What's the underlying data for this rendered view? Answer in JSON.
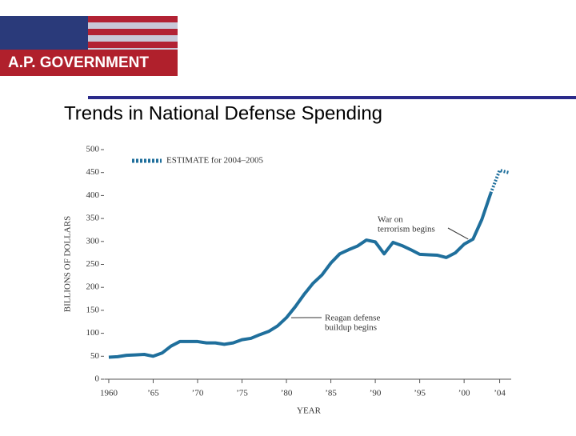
{
  "header": {
    "title": "A.P. GOVERNMENT"
  },
  "slide_title": "Trends in National Defense Spending",
  "chart_data": {
    "type": "line",
    "y_label": "BILLIONS OF DOLLARS",
    "x_label": "YEAR",
    "x": [
      1960,
      1961,
      1962,
      1963,
      1964,
      1965,
      1966,
      1967,
      1968,
      1969,
      1970,
      1971,
      1972,
      1973,
      1974,
      1975,
      1976,
      1977,
      1978,
      1979,
      1980,
      1981,
      1982,
      1983,
      1984,
      1985,
      1986,
      1987,
      1988,
      1989,
      1990,
      1991,
      1992,
      1993,
      1994,
      1995,
      1996,
      1997,
      1998,
      1999,
      2000,
      2001,
      2002,
      2003,
      2004,
      2005
    ],
    "series": [
      {
        "color": "#1f6f9c",
        "style": "solid",
        "values": [
          48,
          49,
          52,
          53,
          54,
          50,
          57,
          72,
          82,
          82,
          82,
          79,
          79,
          76,
          79,
          86,
          89,
          97,
          104,
          116,
          134,
          158,
          185,
          209,
          227,
          253,
          273,
          282,
          290,
          303,
          299,
          273,
          298,
          291,
          282,
          272,
          271,
          270,
          265,
          275,
          294,
          305,
          348,
          405,
          null,
          null
        ]
      },
      {
        "name": "ESTIMATE for 2004–2005",
        "color": "#1f6f9c",
        "style": "dotted",
        "values": [
          null,
          null,
          null,
          null,
          null,
          null,
          null,
          null,
          null,
          null,
          null,
          null,
          null,
          null,
          null,
          null,
          null,
          null,
          null,
          null,
          null,
          null,
          null,
          null,
          null,
          null,
          null,
          null,
          null,
          null,
          null,
          null,
          null,
          null,
          null,
          null,
          null,
          null,
          null,
          null,
          null,
          null,
          null,
          405,
          455,
          450
        ]
      }
    ],
    "xlim": [
      1959.5,
      2005.3
    ],
    "ylim": [
      0,
      500
    ],
    "yticks": [
      0,
      50,
      100,
      150,
      200,
      250,
      300,
      350,
      400,
      450,
      500
    ],
    "xticks": [
      1960,
      {
        "value": 1965,
        "label": "’65"
      },
      {
        "value": 1970,
        "label": "’70"
      },
      {
        "value": 1975,
        "label": "’75"
      },
      {
        "value": 1980,
        "label": "’80"
      },
      {
        "value": 1985,
        "label": "’85"
      },
      {
        "value": 1990,
        "label": "’90"
      },
      {
        "value": 1995,
        "label": "’95"
      },
      {
        "value": 2000,
        "label": "’00"
      },
      {
        "value": 2004,
        "label": "’04"
      }
    ],
    "grid": false,
    "annotations": [
      {
        "lines": [
          "War on",
          "terrorism begins"
        ],
        "x": 2001,
        "y": 305
      },
      {
        "lines": [
          "Reagan defense",
          "buildup begins"
        ],
        "x": 1980,
        "y": 134
      }
    ]
  }
}
